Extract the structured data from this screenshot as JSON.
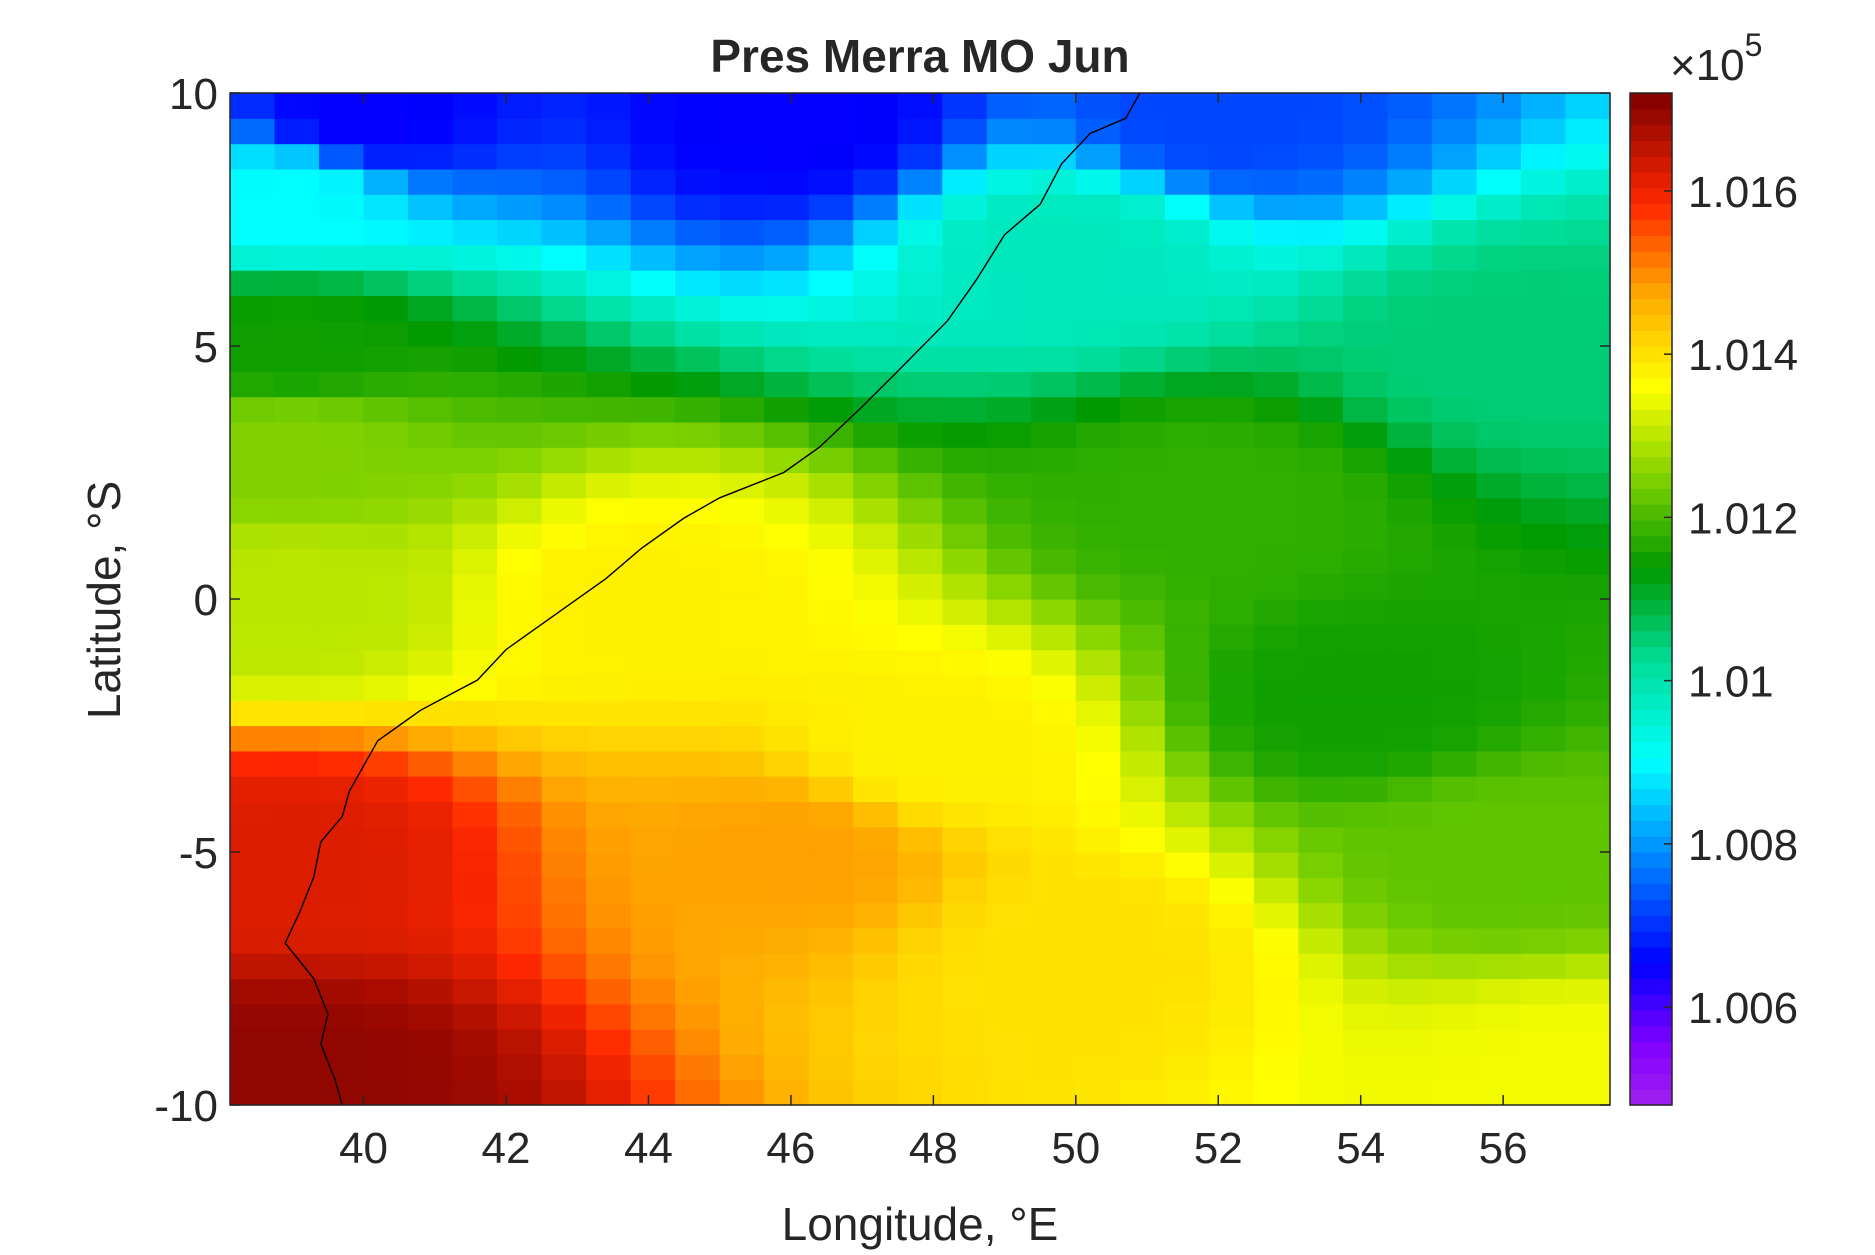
{
  "chart_data": {
    "type": "heatmap",
    "title": "Pres Merra MO Jun",
    "xlabel": "Longitude, °E",
    "ylabel": "Latitude, °S",
    "xlim": [
      38.125,
      57.5
    ],
    "ylim": [
      -10,
      10
    ],
    "x_ticks": [
      40,
      42,
      44,
      46,
      48,
      50,
      52,
      54,
      56
    ],
    "x_tick_labels": [
      "40",
      "42",
      "44",
      "46",
      "48",
      "50",
      "52",
      "54",
      "56"
    ],
    "y_ticks": [
      10,
      5,
      0,
      -5,
      -10
    ],
    "y_tick_labels": [
      "10",
      "5",
      "0",
      "-5",
      "-10"
    ],
    "colorbar": {
      "colormap": "jet-reversed (dark red high, violet low)",
      "range": [
        100480,
        101720
      ],
      "ticks": [
        100600,
        100800,
        101000,
        101200,
        101400,
        101600
      ],
      "tick_labels": [
        "1.006",
        "1.008",
        "1.01",
        "1.012",
        "1.014",
        "1.016"
      ],
      "exponent_label": "×10",
      "exponent_power": "5",
      "colors": [
        "#7f0000",
        "#ff0000",
        "#ff8000",
        "#ffff00",
        "#80e000",
        "#009900",
        "#00e0a0",
        "#00ffff",
        "#0080ff",
        "#0000ff",
        "#8000ff",
        "#a020f0"
      ]
    },
    "grid": {
      "lon_start": 38.125,
      "lon_step": 0.625,
      "lat_start": -10,
      "lat_step": 0.5,
      "n_lon": 31,
      "n_lat": 40,
      "field_description": "Sea-level pressure (Pa), high (~1.017e5) in south-west, decreasing north-eastward to ~1.012e5 near 2°N 52°E and to ~1.006e5 along 9-10°N; estimated values from color"
    },
    "field_samples": [
      {
        "lon": 39,
        "lat": -9.5,
        "value": 101700
      },
      {
        "lon": 39,
        "lat": -5,
        "value": 101620
      },
      {
        "lon": 39,
        "lat": 0,
        "value": 101300
      },
      {
        "lon": 39,
        "lat": 3,
        "value": 101250
      },
      {
        "lon": 39,
        "lat": 5,
        "value": 101150
      },
      {
        "lon": 39,
        "lat": 8,
        "value": 100900
      },
      {
        "lon": 40,
        "lat": 9.5,
        "value": 100650
      },
      {
        "lon": 44,
        "lat": 0,
        "value": 101380
      },
      {
        "lon": 46,
        "lat": -5,
        "value": 101480
      },
      {
        "lon": 48,
        "lat": -3,
        "value": 101380
      },
      {
        "lon": 50,
        "lat": -7,
        "value": 101400
      },
      {
        "lon": 52,
        "lat": 2,
        "value": 101180
      },
      {
        "lon": 54,
        "lat": -2,
        "value": 101150
      },
      {
        "lon": 56,
        "lat": -5,
        "value": 101220
      },
      {
        "lon": 57,
        "lat": -9.5,
        "value": 101350
      },
      {
        "lon": 56,
        "lat": 5,
        "value": 101050
      },
      {
        "lon": 50,
        "lat": 7,
        "value": 100980
      },
      {
        "lon": 46,
        "lat": 9.5,
        "value": 100650
      },
      {
        "lon": 52,
        "lat": 9.5,
        "value": 100720
      }
    ],
    "coastline": [
      [
        50.9,
        10
      ],
      [
        50.7,
        9.5
      ],
      [
        50.2,
        9.2
      ],
      [
        49.8,
        8.6
      ],
      [
        49.5,
        7.8
      ],
      [
        49.0,
        7.2
      ],
      [
        48.6,
        6.3
      ],
      [
        48.2,
        5.5
      ],
      [
        47.5,
        4.5
      ],
      [
        47,
        3.8
      ],
      [
        46.4,
        3
      ],
      [
        45.9,
        2.5
      ],
      [
        45,
        2
      ],
      [
        44.5,
        1.6
      ],
      [
        43.9,
        1
      ],
      [
        43.4,
        0.4
      ],
      [
        42.9,
        -0.1
      ],
      [
        42.5,
        -0.5
      ],
      [
        42.0,
        -1.0
      ],
      [
        41.6,
        -1.6
      ],
      [
        41.2,
        -1.9
      ],
      [
        40.8,
        -2.2
      ],
      [
        40.5,
        -2.5
      ],
      [
        40.2,
        -2.8
      ],
      [
        40.0,
        -3.3
      ],
      [
        39.8,
        -3.8
      ],
      [
        39.7,
        -4.3
      ],
      [
        39.4,
        -4.8
      ],
      [
        39.3,
        -5.5
      ],
      [
        39.1,
        -6.2
      ],
      [
        38.9,
        -6.8
      ],
      [
        39.3,
        -7.5
      ],
      [
        39.5,
        -8.2
      ],
      [
        39.4,
        -8.8
      ],
      [
        39.6,
        -9.5
      ],
      [
        39.7,
        -10
      ]
    ]
  }
}
